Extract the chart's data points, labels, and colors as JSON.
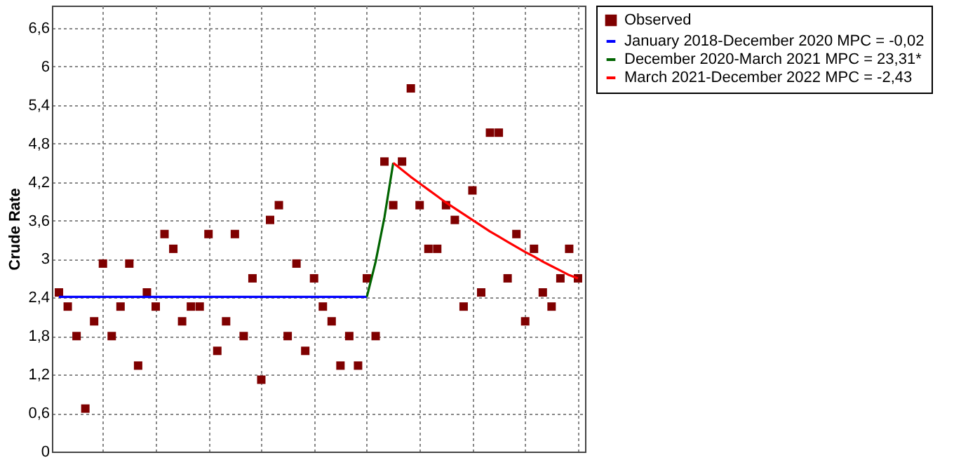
{
  "chart_data": {
    "type": "scatter",
    "ylabel": "Crude Rate",
    "categories": [
      null,
      null,
      null,
      null,
      null,
      null,
      null,
      null,
      null,
      null,
      null,
      null,
      null,
      null,
      null,
      null,
      null,
      null,
      null,
      null,
      null,
      null,
      null,
      null,
      null,
      null,
      null,
      null,
      null,
      null,
      null,
      null,
      null,
      null,
      null,
      null,
      null,
      null,
      null,
      null,
      null,
      null,
      null,
      null,
      null,
      null,
      null,
      null,
      null,
      null,
      null,
      null,
      null,
      null,
      null,
      null,
      null,
      null,
      null,
      null
    ],
    "series": [
      {
        "name": "Observed",
        "type": "scatter",
        "marker": "square",
        "color": "#7f0000",
        "values": [
          2.48,
          2.26,
          1.8,
          0.67,
          2.03,
          2.93,
          1.8,
          2.26,
          2.93,
          1.34,
          2.48,
          2.26,
          3.39,
          3.16,
          2.03,
          2.26,
          2.26,
          3.39,
          1.57,
          2.03,
          3.39,
          1.8,
          2.7,
          1.12,
          3.61,
          3.84,
          1.8,
          2.93,
          1.57,
          2.7,
          2.26,
          2.03,
          1.34,
          1.8,
          1.34,
          2.7,
          1.8,
          4.52,
          3.84,
          4.52,
          5.66,
          3.84,
          3.16,
          3.16,
          3.84,
          3.61,
          2.26,
          4.07,
          2.48,
          4.97,
          4.97,
          2.7,
          3.39,
          2.03,
          3.16,
          2.48,
          2.26,
          2.7,
          3.16,
          2.7
        ]
      },
      {
        "name": "January 2018-December 2020 MPC = -0,02",
        "type": "line",
        "marker": "none",
        "color": "#0000ff",
        "values": [
          2.41,
          2.41,
          2.41,
          2.41,
          2.41,
          2.41,
          2.41,
          2.41,
          2.41,
          2.41,
          2.41,
          2.41,
          2.41,
          2.41,
          2.41,
          2.41,
          2.41,
          2.41,
          2.41,
          2.41,
          2.41,
          2.41,
          2.41,
          2.41,
          2.41,
          2.41,
          2.41,
          2.41,
          2.41,
          2.41,
          2.41,
          2.41,
          2.41,
          2.41,
          2.41,
          2.41,
          null,
          null,
          null,
          null,
          null,
          null,
          null,
          null,
          null,
          null,
          null,
          null,
          null,
          null,
          null,
          null,
          null,
          null,
          null,
          null,
          null,
          null,
          null,
          null
        ]
      },
      {
        "name": "December 2020-March 2021 MPC = 23,31*",
        "type": "line",
        "marker": "none",
        "color": "#006400",
        "values": [
          null,
          null,
          null,
          null,
          null,
          null,
          null,
          null,
          null,
          null,
          null,
          null,
          null,
          null,
          null,
          null,
          null,
          null,
          null,
          null,
          null,
          null,
          null,
          null,
          null,
          null,
          null,
          null,
          null,
          null,
          null,
          null,
          null,
          null,
          null,
          2.41,
          2.96,
          3.65,
          4.5,
          null,
          null,
          null,
          null,
          null,
          null,
          null,
          null,
          null,
          null,
          null,
          null,
          null,
          null,
          null,
          null,
          null,
          null,
          null,
          null,
          null
        ]
      },
      {
        "name": "March 2021-December 2022 MPC = -2,43",
        "type": "line",
        "marker": "none",
        "color": "#ff0000",
        "values": [
          null,
          null,
          null,
          null,
          null,
          null,
          null,
          null,
          null,
          null,
          null,
          null,
          null,
          null,
          null,
          null,
          null,
          null,
          null,
          null,
          null,
          null,
          null,
          null,
          null,
          null,
          null,
          null,
          null,
          null,
          null,
          null,
          null,
          null,
          null,
          null,
          null,
          null,
          4.5,
          4.39,
          4.28,
          4.18,
          4.08,
          3.98,
          3.88,
          3.79,
          3.7,
          3.61,
          3.52,
          3.43,
          3.35,
          3.27,
          3.19,
          3.11,
          3.04,
          2.96,
          2.89,
          2.82,
          2.75,
          2.7
        ]
      }
    ],
    "ylim": [
      0,
      6.95
    ],
    "yticks": [
      0,
      {
        "value": 0.6,
        "label": "0,6"
      },
      {
        "value": 1.2,
        "label": "1,2"
      },
      {
        "value": 1.8,
        "label": "1,8"
      },
      {
        "value": 2.4,
        "label": "2,4"
      },
      3,
      {
        "value": 3.6,
        "label": "3,6"
      },
      {
        "value": 4.2,
        "label": "4,2"
      },
      {
        "value": 4.8,
        "label": "4,8"
      },
      {
        "value": 5.4,
        "label": "5,4"
      },
      6,
      {
        "value": 6.6,
        "label": "6,6"
      }
    ],
    "grid": true,
    "legend": "top right",
    "tick_labels": "y"
  }
}
